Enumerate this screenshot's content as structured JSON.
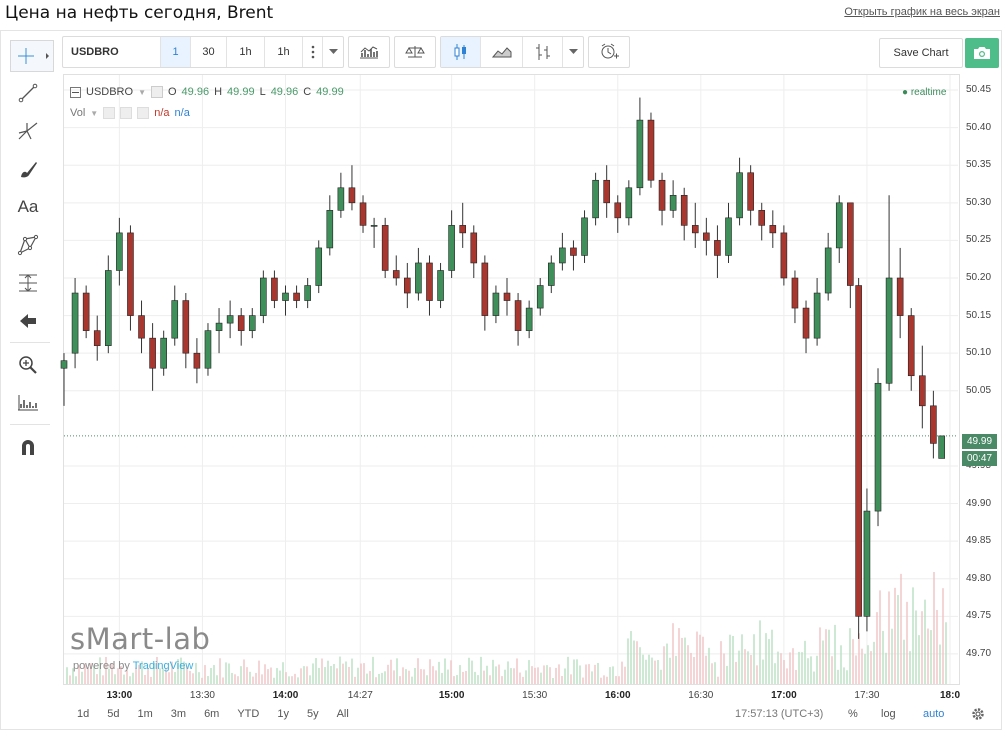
{
  "page": {
    "title": "Цена на нефть сегодня, Brent",
    "fullscreen_link": "Открыть график на весь экран"
  },
  "toolbar": {
    "symbol": "USDBRO",
    "intervals": [
      "1",
      "30",
      "1h",
      "1h"
    ],
    "save_label": "Save Chart"
  },
  "legend": {
    "symbol": "USDBRO",
    "o_label": "O",
    "o_value": "49.96",
    "h_label": "H",
    "h_value": "49.99",
    "l_label": "L",
    "l_value": "49.96",
    "c_label": "C",
    "c_value": "49.99",
    "vol_label": "Vol",
    "vol_value1": "n/a",
    "vol_value2": "n/a",
    "realtime": "realtime"
  },
  "price_axis": [
    "50.45",
    "50.40",
    "50.35",
    "50.30",
    "50.25",
    "50.20",
    "50.15",
    "50.10",
    "50.05",
    "49.95",
    "49.90",
    "49.85",
    "49.80",
    "49.75",
    "49.70"
  ],
  "price_tag": "49.99",
  "time_tag": "00:47",
  "time_axis": [
    "13:00",
    "13:30",
    "14:00",
    "14:27",
    "15:00",
    "15:30",
    "16:00",
    "16:30",
    "17:00",
    "17:30",
    "18:0"
  ],
  "watermark": {
    "brand": "sMart-lab",
    "powered_prefix": "powered by",
    "powered_name": "TradingView"
  },
  "ranges": [
    "1d",
    "5d",
    "1m",
    "3m",
    "6m",
    "YTD",
    "1y",
    "5y",
    "All"
  ],
  "status": {
    "clock": "17:57:13 (UTC+3)",
    "percent": "%",
    "log": "log",
    "auto": "auto"
  },
  "chart_data": {
    "type": "candlestick",
    "ylim": [
      49.66,
      50.47
    ],
    "last_price": 49.99,
    "candles": [
      [
        "12:40",
        50.08,
        50.1,
        50.03,
        50.09
      ],
      [
        "12:44",
        50.1,
        50.2,
        50.08,
        50.18
      ],
      [
        "12:48",
        50.18,
        50.19,
        50.12,
        50.13
      ],
      [
        "12:52",
        50.13,
        50.15,
        50.09,
        50.11
      ],
      [
        "12:56",
        50.11,
        50.23,
        50.1,
        50.21
      ],
      [
        "13:00",
        50.21,
        50.28,
        50.19,
        50.26
      ],
      [
        "13:04",
        50.26,
        50.27,
        50.13,
        50.15
      ],
      [
        "13:08",
        50.15,
        50.17,
        50.1,
        50.12
      ],
      [
        "13:12",
        50.12,
        50.14,
        50.05,
        50.08
      ],
      [
        "13:16",
        50.08,
        50.13,
        50.07,
        50.12
      ],
      [
        "13:20",
        50.12,
        50.19,
        50.11,
        50.17
      ],
      [
        "13:24",
        50.17,
        50.18,
        50.08,
        50.1
      ],
      [
        "13:28",
        50.1,
        50.12,
        50.06,
        50.08
      ],
      [
        "13:32",
        50.08,
        50.14,
        50.07,
        50.13
      ],
      [
        "13:36",
        50.13,
        50.16,
        50.1,
        50.14
      ],
      [
        "13:40",
        50.14,
        50.17,
        50.12,
        50.15
      ],
      [
        "13:44",
        50.15,
        50.16,
        50.11,
        50.13
      ],
      [
        "13:48",
        50.13,
        50.16,
        50.12,
        50.15
      ],
      [
        "13:52",
        50.15,
        50.21,
        50.14,
        50.2
      ],
      [
        "13:56",
        50.2,
        50.21,
        50.16,
        50.17
      ],
      [
        "14:00",
        50.17,
        50.19,
        50.15,
        50.18
      ],
      [
        "14:04",
        50.18,
        50.19,
        50.16,
        50.17
      ],
      [
        "14:08",
        50.17,
        50.2,
        50.16,
        50.19
      ],
      [
        "14:12",
        50.19,
        50.25,
        50.18,
        50.24
      ],
      [
        "14:16",
        50.24,
        50.31,
        50.23,
        50.29
      ],
      [
        "14:20",
        50.29,
        50.34,
        50.28,
        50.32
      ],
      [
        "14:24",
        50.32,
        50.35,
        50.29,
        50.3
      ],
      [
        "14:28",
        50.3,
        50.31,
        50.26,
        50.27
      ],
      [
        "14:32",
        50.27,
        50.28,
        50.24,
        50.27
      ],
      [
        "14:36",
        50.27,
        50.28,
        50.2,
        50.21
      ],
      [
        "14:40",
        50.21,
        50.23,
        50.19,
        50.2
      ],
      [
        "14:44",
        50.2,
        50.22,
        50.16,
        50.18
      ],
      [
        "14:48",
        50.18,
        50.24,
        50.17,
        50.22
      ],
      [
        "14:52",
        50.22,
        50.23,
        50.15,
        50.17
      ],
      [
        "14:56",
        50.17,
        50.22,
        50.16,
        50.21
      ],
      [
        "15:00",
        50.21,
        50.29,
        50.2,
        50.27
      ],
      [
        "15:04",
        50.27,
        50.3,
        50.24,
        50.26
      ],
      [
        "15:08",
        50.26,
        50.27,
        50.2,
        50.22
      ],
      [
        "15:12",
        50.22,
        50.23,
        50.13,
        50.15
      ],
      [
        "15:16",
        50.15,
        50.19,
        50.14,
        50.18
      ],
      [
        "15:20",
        50.18,
        50.2,
        50.15,
        50.17
      ],
      [
        "15:24",
        50.17,
        50.18,
        50.11,
        50.13
      ],
      [
        "15:28",
        50.13,
        50.17,
        50.12,
        50.16
      ],
      [
        "15:32",
        50.16,
        50.2,
        50.15,
        50.19
      ],
      [
        "15:36",
        50.19,
        50.23,
        50.18,
        50.22
      ],
      [
        "15:40",
        50.22,
        50.26,
        50.21,
        50.24
      ],
      [
        "15:44",
        50.24,
        50.25,
        50.21,
        50.23
      ],
      [
        "15:48",
        50.23,
        50.29,
        50.22,
        50.28
      ],
      [
        "15:52",
        50.28,
        50.34,
        50.27,
        50.33
      ],
      [
        "15:56",
        50.33,
        50.35,
        50.28,
        50.3
      ],
      [
        "16:00",
        50.3,
        50.31,
        50.26,
        50.28
      ],
      [
        "16:04",
        50.28,
        50.33,
        50.27,
        50.32
      ],
      [
        "16:08",
        50.32,
        50.44,
        50.31,
        50.41
      ],
      [
        "16:12",
        50.41,
        50.42,
        50.32,
        50.33
      ],
      [
        "16:16",
        50.33,
        50.34,
        50.27,
        50.29
      ],
      [
        "16:20",
        50.29,
        50.33,
        50.28,
        50.31
      ],
      [
        "16:24",
        50.31,
        50.32,
        50.25,
        50.27
      ],
      [
        "16:28",
        50.27,
        50.3,
        50.24,
        50.26
      ],
      [
        "16:32",
        50.26,
        50.28,
        50.23,
        50.25
      ],
      [
        "16:36",
        50.25,
        50.27,
        50.2,
        50.23
      ],
      [
        "16:40",
        50.23,
        50.3,
        50.22,
        50.28
      ],
      [
        "16:44",
        50.28,
        50.36,
        50.27,
        50.34
      ],
      [
        "16:48",
        50.34,
        50.35,
        50.27,
        50.29
      ],
      [
        "16:52",
        50.29,
        50.3,
        50.25,
        50.27
      ],
      [
        "16:56",
        50.27,
        50.29,
        50.24,
        50.26
      ],
      [
        "17:00",
        50.26,
        50.27,
        50.19,
        50.2
      ],
      [
        "17:04",
        50.2,
        50.21,
        50.14,
        50.16
      ],
      [
        "17:08",
        50.16,
        50.17,
        50.1,
        50.12
      ],
      [
        "17:12",
        50.12,
        50.2,
        50.11,
        50.18
      ],
      [
        "17:16",
        50.18,
        50.26,
        50.17,
        50.24
      ],
      [
        "17:20",
        50.24,
        50.31,
        50.22,
        50.3
      ],
      [
        "17:24",
        50.3,
        50.3,
        50.16,
        50.19
      ],
      [
        "17:27",
        50.19,
        50.2,
        49.72,
        49.75
      ],
      [
        "17:30",
        49.75,
        49.92,
        49.73,
        49.89
      ],
      [
        "17:34",
        49.89,
        50.08,
        49.87,
        50.06
      ],
      [
        "17:38",
        50.06,
        50.31,
        50.05,
        50.2
      ],
      [
        "17:42",
        50.2,
        50.24,
        50.12,
        50.15
      ],
      [
        "17:46",
        50.15,
        50.16,
        50.05,
        50.07
      ],
      [
        "17:50",
        50.07,
        50.11,
        50.0,
        50.03
      ],
      [
        "17:54",
        50.03,
        50.05,
        49.96,
        49.98
      ],
      [
        "17:57",
        49.96,
        49.99,
        49.96,
        49.99
      ]
    ]
  }
}
